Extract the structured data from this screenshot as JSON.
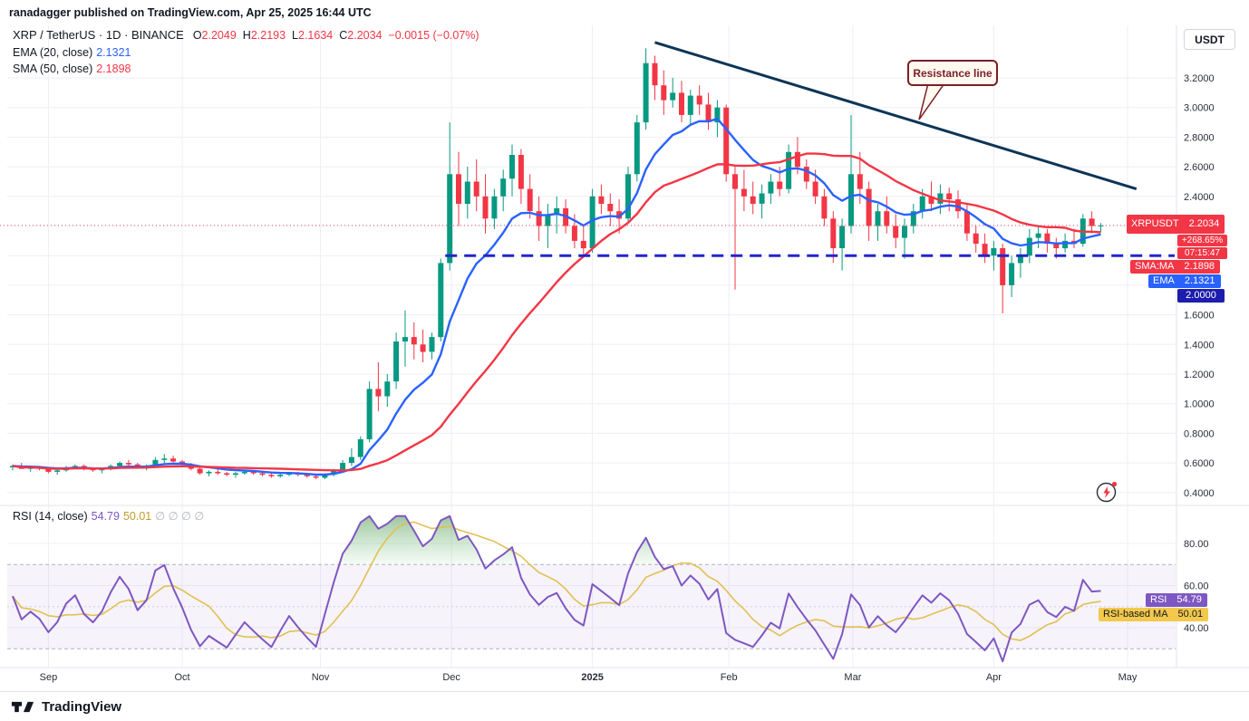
{
  "header": {
    "publish_line": "ranadagger published on TradingView.com, Apr 25, 2025 16:44 UTC"
  },
  "main_legend": {
    "symbol_line": {
      "title": "XRP / TetherUS · 1D · BINANCE",
      "o_label": "O",
      "o_value": "2.2049",
      "h_label": "H",
      "h_value": "2.2193",
      "l_label": "L",
      "l_value": "2.1634",
      "c_label": "C",
      "c_value": "2.2034",
      "change": "−0.0015 (−0.07%)"
    },
    "ema": {
      "label": "EMA (20, close)",
      "value": "2.1321"
    },
    "sma": {
      "label": "SMA (50, close)",
      "value": "2.1898"
    }
  },
  "rsi_legend": {
    "label": "RSI (14, close)",
    "rsi_value": "54.79",
    "ma_value": "50.01",
    "empty_slots": "∅ ∅ ∅ ∅"
  },
  "annotation": {
    "text": "Resistance line"
  },
  "buttons": {
    "currency": "USDT"
  },
  "axis_badges": {
    "symbol": "XRPUSDT",
    "last_price": "2.2034",
    "change_percent": "+268.65%",
    "countdown": "07:15:47",
    "sma_label": "SMA:MA",
    "sma_value": "2.1898",
    "ema_label": "EMA",
    "ema_value": "2.1321",
    "support_value": "2.0000",
    "rsi_label": "RSI",
    "rsi_value": "54.79",
    "rsi_ma_label": "RSI-based MA",
    "rsi_ma_value": "50.01"
  },
  "footer": {
    "logo_text": "TradingView"
  },
  "icons": {
    "flash_button": "lightning-bolt",
    "logo": "tradingview-mark"
  },
  "colors": {
    "up": "#089981",
    "down": "#F23645",
    "ema": "#2962FF",
    "sma": "#F23645",
    "rsi": "#7E57C2",
    "rsi_ma": "#E2C054",
    "trend_line": "#0D3556",
    "support_line": "#2424CD",
    "last_price_line": "#F7525F",
    "last_price_badge": "#F23645",
    "sma_badge": "#F23645",
    "ema_badge": "#2962FF",
    "line_badge": "#1C1CAE",
    "rsi_badge": "#7E57C2",
    "rsi_ma_badge": "#F2C94C",
    "annotation": "#7B1E25",
    "legend_value_yellow": "#C19D25",
    "grid": "#EDEFF4"
  },
  "chart_data": {
    "type": "candlestick",
    "title": "XRP / TetherUS · 1D · BINANCE",
    "price_axis": {
      "ticks": [
        "3.2000",
        "3.0000",
        "2.8000",
        "2.6000",
        "2.4000",
        "1.6000",
        "1.4000",
        "1.2000",
        "1.0000",
        "0.8000",
        "0.6000",
        "0.4000"
      ],
      "visible_range": [
        0.33,
        3.55
      ]
    },
    "time_axis": {
      "labels": [
        {
          "label": "Sep",
          "idx": 4
        },
        {
          "label": "Oct",
          "idx": 19
        },
        {
          "label": "Nov",
          "idx": 34.5
        },
        {
          "label": "Dec",
          "idx": 49.2
        },
        {
          "label": "2025",
          "idx": 65,
          "bold": true
        },
        {
          "label": "Feb",
          "idx": 80.3
        },
        {
          "label": "Mar",
          "idx": 94.2
        },
        {
          "label": "Apr",
          "idx": 110
        },
        {
          "label": "May",
          "idx": 125
        }
      ]
    },
    "last_price": 2.2034,
    "ohlc_last": {
      "open": 2.2049,
      "high": 2.2193,
      "low": 2.1634,
      "close": 2.2034
    },
    "ema_value": 2.1321,
    "sma_value": 2.1898,
    "trend_line": {
      "from": {
        "idx": 72,
        "price": 3.44
      },
      "to": {
        "idx": 126,
        "price": 2.45
      },
      "label": "Resistance line"
    },
    "support_line": {
      "price": 2.0,
      "from_idx": 48.5,
      "style": "dashed"
    },
    "rsi_pane": {
      "ticks": [
        "80.00",
        "60.00",
        "40.00"
      ],
      "band": [
        30,
        70
      ],
      "last_rsi": 54.79,
      "last_ma": 50.01
    },
    "candles": [
      [
        0.57,
        0.59,
        0.55,
        0.58
      ],
      [
        0.58,
        0.6,
        0.56,
        0.56
      ],
      [
        0.56,
        0.58,
        0.54,
        0.57
      ],
      [
        0.57,
        0.58,
        0.55,
        0.56
      ],
      [
        0.56,
        0.57,
        0.53,
        0.54
      ],
      [
        0.54,
        0.56,
        0.52,
        0.55
      ],
      [
        0.55,
        0.58,
        0.54,
        0.57
      ],
      [
        0.57,
        0.59,
        0.56,
        0.58
      ],
      [
        0.58,
        0.59,
        0.55,
        0.56
      ],
      [
        0.56,
        0.57,
        0.54,
        0.55
      ],
      [
        0.55,
        0.57,
        0.53,
        0.56
      ],
      [
        0.56,
        0.59,
        0.55,
        0.58
      ],
      [
        0.58,
        0.61,
        0.57,
        0.6
      ],
      [
        0.6,
        0.62,
        0.58,
        0.59
      ],
      [
        0.59,
        0.6,
        0.56,
        0.57
      ],
      [
        0.57,
        0.59,
        0.55,
        0.58
      ],
      [
        0.58,
        0.64,
        0.57,
        0.62
      ],
      [
        0.62,
        0.66,
        0.6,
        0.63
      ],
      [
        0.63,
        0.65,
        0.6,
        0.61
      ],
      [
        0.61,
        0.62,
        0.58,
        0.59
      ],
      [
        0.59,
        0.6,
        0.55,
        0.56
      ],
      [
        0.56,
        0.57,
        0.52,
        0.53
      ],
      [
        0.53,
        0.55,
        0.51,
        0.54
      ],
      [
        0.54,
        0.56,
        0.52,
        0.53
      ],
      [
        0.53,
        0.54,
        0.51,
        0.52
      ],
      [
        0.52,
        0.54,
        0.5,
        0.53
      ],
      [
        0.53,
        0.55,
        0.52,
        0.54
      ],
      [
        0.54,
        0.55,
        0.52,
        0.53
      ],
      [
        0.53,
        0.54,
        0.51,
        0.52
      ],
      [
        0.52,
        0.53,
        0.5,
        0.51
      ],
      [
        0.51,
        0.53,
        0.5,
        0.52
      ],
      [
        0.52,
        0.54,
        0.51,
        0.53
      ],
      [
        0.53,
        0.54,
        0.51,
        0.52
      ],
      [
        0.52,
        0.53,
        0.5,
        0.51
      ],
      [
        0.51,
        0.52,
        0.49,
        0.5
      ],
      [
        0.5,
        0.53,
        0.49,
        0.52
      ],
      [
        0.52,
        0.56,
        0.51,
        0.55
      ],
      [
        0.55,
        0.62,
        0.54,
        0.6
      ],
      [
        0.6,
        0.7,
        0.58,
        0.64
      ],
      [
        0.64,
        0.78,
        0.62,
        0.76
      ],
      [
        0.76,
        1.15,
        0.74,
        1.1
      ],
      [
        1.1,
        1.28,
        0.95,
        1.05
      ],
      [
        1.05,
        1.2,
        0.98,
        1.15
      ],
      [
        1.15,
        1.48,
        1.1,
        1.42
      ],
      [
        1.42,
        1.63,
        1.25,
        1.45
      ],
      [
        1.45,
        1.55,
        1.3,
        1.4
      ],
      [
        1.4,
        1.5,
        1.28,
        1.35
      ],
      [
        1.35,
        1.48,
        1.3,
        1.45
      ],
      [
        1.45,
        1.98,
        1.42,
        1.95
      ],
      [
        1.95,
        2.9,
        1.9,
        2.55
      ],
      [
        2.55,
        2.7,
        2.2,
        2.35
      ],
      [
        2.35,
        2.6,
        2.25,
        2.5
      ],
      [
        2.5,
        2.65,
        2.3,
        2.4
      ],
      [
        2.4,
        2.55,
        2.15,
        2.25
      ],
      [
        2.25,
        2.45,
        2.18,
        2.4
      ],
      [
        2.4,
        2.58,
        2.3,
        2.52
      ],
      [
        2.52,
        2.75,
        2.4,
        2.68
      ],
      [
        2.68,
        2.72,
        2.35,
        2.45
      ],
      [
        2.45,
        2.55,
        2.25,
        2.3
      ],
      [
        2.3,
        2.4,
        2.1,
        2.2
      ],
      [
        2.2,
        2.35,
        2.05,
        2.28
      ],
      [
        2.28,
        2.4,
        2.15,
        2.32
      ],
      [
        2.32,
        2.38,
        2.15,
        2.2
      ],
      [
        2.2,
        2.28,
        2.05,
        2.1
      ],
      [
        2.1,
        2.2,
        2.0,
        2.05
      ],
      [
        2.05,
        2.45,
        2.02,
        2.4
      ],
      [
        2.4,
        2.48,
        2.28,
        2.35
      ],
      [
        2.35,
        2.42,
        2.2,
        2.3
      ],
      [
        2.3,
        2.38,
        2.15,
        2.25
      ],
      [
        2.25,
        2.6,
        2.22,
        2.55
      ],
      [
        2.55,
        2.95,
        2.5,
        2.9
      ],
      [
        2.9,
        3.4,
        2.85,
        3.3
      ],
      [
        3.3,
        3.35,
        3.05,
        3.15
      ],
      [
        3.15,
        3.25,
        2.95,
        3.05
      ],
      [
        3.05,
        3.2,
        3.0,
        3.1
      ],
      [
        3.1,
        3.18,
        2.9,
        2.95
      ],
      [
        2.95,
        3.12,
        2.88,
        3.08
      ],
      [
        3.08,
        3.15,
        2.95,
        3.02
      ],
      [
        3.02,
        3.1,
        2.85,
        2.9
      ],
      [
        2.9,
        3.05,
        2.8,
        3.0
      ],
      [
        3.0,
        3.02,
        2.5,
        2.55
      ],
      [
        2.55,
        2.6,
        1.77,
        2.45
      ],
      [
        2.45,
        2.58,
        2.3,
        2.4
      ],
      [
        2.4,
        2.5,
        2.28,
        2.35
      ],
      [
        2.35,
        2.48,
        2.25,
        2.42
      ],
      [
        2.42,
        2.55,
        2.35,
        2.5
      ],
      [
        2.5,
        2.6,
        2.4,
        2.45
      ],
      [
        2.45,
        2.75,
        2.42,
        2.7
      ],
      [
        2.7,
        2.8,
        2.55,
        2.6
      ],
      [
        2.6,
        2.65,
        2.45,
        2.5
      ],
      [
        2.5,
        2.58,
        2.35,
        2.4
      ],
      [
        2.4,
        2.45,
        2.2,
        2.25
      ],
      [
        2.25,
        2.3,
        1.95,
        2.05
      ],
      [
        2.05,
        2.25,
        1.9,
        2.2
      ],
      [
        2.2,
        2.95,
        2.15,
        2.55
      ],
      [
        2.55,
        2.7,
        2.35,
        2.45
      ],
      [
        2.45,
        2.5,
        2.1,
        2.2
      ],
      [
        2.2,
        2.35,
        2.1,
        2.3
      ],
      [
        2.3,
        2.4,
        2.15,
        2.2
      ],
      [
        2.2,
        2.28,
        2.05,
        2.12
      ],
      [
        2.12,
        2.25,
        1.98,
        2.2
      ],
      [
        2.2,
        2.35,
        2.15,
        2.3
      ],
      [
        2.3,
        2.45,
        2.25,
        2.4
      ],
      [
        2.4,
        2.5,
        2.3,
        2.35
      ],
      [
        2.35,
        2.48,
        2.28,
        2.42
      ],
      [
        2.42,
        2.46,
        2.3,
        2.38
      ],
      [
        2.38,
        2.44,
        2.25,
        2.3
      ],
      [
        2.3,
        2.35,
        2.1,
        2.15
      ],
      [
        2.15,
        2.2,
        2.02,
        2.08
      ],
      [
        2.08,
        2.15,
        1.95,
        2.0
      ],
      [
        2.0,
        2.1,
        1.9,
        2.05
      ],
      [
        2.05,
        2.08,
        1.61,
        1.8
      ],
      [
        1.8,
        2.0,
        1.72,
        1.95
      ],
      [
        1.95,
        2.05,
        1.85,
        2.0
      ],
      [
        2.0,
        2.18,
        1.95,
        2.12
      ],
      [
        2.12,
        2.2,
        2.05,
        2.15
      ],
      [
        2.15,
        2.18,
        2.02,
        2.08
      ],
      [
        2.08,
        2.12,
        1.98,
        2.05
      ],
      [
        2.05,
        2.15,
        2.02,
        2.1
      ],
      [
        2.1,
        2.18,
        2.05,
        2.08
      ],
      [
        2.08,
        2.28,
        2.06,
        2.25
      ],
      [
        2.25,
        2.3,
        2.15,
        2.2
      ],
      [
        2.2,
        2.22,
        2.16,
        2.2034
      ]
    ]
  }
}
